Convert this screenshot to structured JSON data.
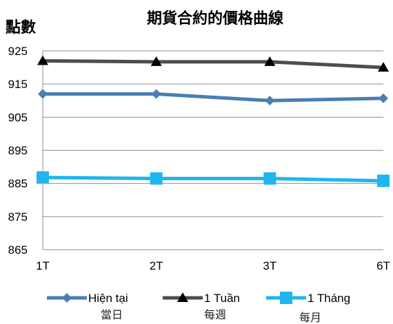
{
  "chart_data": {
    "type": "line",
    "title": "期貨合約的價格曲線",
    "ylabel": "點數",
    "xlabel": "",
    "categories": [
      "1T",
      "2T",
      "3T",
      "6T"
    ],
    "ylim": [
      865,
      925
    ],
    "yticks": [
      "925",
      "915",
      "905",
      "895",
      "885",
      "875",
      "865"
    ],
    "grid": true,
    "legend_position": "bottom",
    "series": [
      {
        "name": "Hiện tại",
        "values": [
          912,
          912,
          910,
          910.7
        ],
        "color": "#4a7eb4",
        "marker": "diamond"
      },
      {
        "name": "1 Tuần",
        "values": [
          922,
          921.7,
          921.7,
          920
        ],
        "color": "#4d4d4d",
        "marker": "triangle"
      },
      {
        "name": "1 Tháng",
        "values": [
          886.8,
          886.5,
          886.5,
          885.8
        ],
        "color": "#1fb6ee",
        "marker": "square"
      }
    ],
    "annotations": [
      "當日",
      "每週",
      "每月"
    ]
  }
}
